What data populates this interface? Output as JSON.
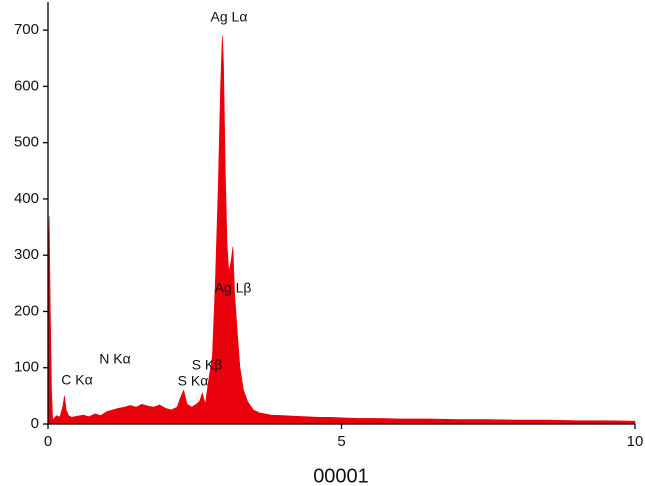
{
  "chart_data": {
    "type": "area",
    "x_label": "00001",
    "color": "#e8000b",
    "x": [
      0,
      0.02,
      0.04,
      0.06,
      0.08,
      0.1,
      0.15,
      0.2,
      0.25,
      0.28,
      0.31,
      0.35,
      0.4,
      0.5,
      0.6,
      0.7,
      0.8,
      0.9,
      1.0,
      1.1,
      1.2,
      1.3,
      1.4,
      1.5,
      1.6,
      1.7,
      1.8,
      1.9,
      2.0,
      2.1,
      2.2,
      2.25,
      2.31,
      2.37,
      2.45,
      2.52,
      2.58,
      2.63,
      2.68,
      2.74,
      2.8,
      2.85,
      2.9,
      2.94,
      2.97,
      2.99,
      3.02,
      3.05,
      3.08,
      3.12,
      3.15,
      3.18,
      3.22,
      3.27,
      3.33,
      3.4,
      3.5,
      3.6,
      3.7,
      3.8,
      4.0,
      4.2,
      4.4,
      4.6,
      4.8,
      5.0,
      5.3,
      5.6,
      6.0,
      6.5,
      7.0,
      7.5,
      8.0,
      8.5,
      9.0,
      9.5,
      10.0
    ],
    "values": [
      250,
      370,
      200,
      60,
      5,
      10,
      15,
      12,
      30,
      50,
      25,
      15,
      12,
      14,
      16,
      13,
      18,
      15,
      22,
      25,
      28,
      30,
      33,
      30,
      35,
      32,
      30,
      34,
      28,
      25,
      30,
      45,
      60,
      35,
      30,
      35,
      40,
      55,
      35,
      80,
      120,
      250,
      420,
      600,
      690,
      640,
      450,
      320,
      270,
      290,
      315,
      230,
      170,
      100,
      60,
      40,
      25,
      20,
      18,
      16,
      15,
      14,
      13,
      12,
      12,
      11,
      10,
      10,
      9,
      9,
      8,
      8,
      7,
      7,
      6,
      6,
      5
    ],
    "xlim": [
      0,
      10
    ],
    "xticks": [
      0,
      5,
      10
    ],
    "ylim": [
      0,
      750
    ],
    "yticks": [
      0,
      100,
      200,
      300,
      400,
      500,
      600,
      700
    ],
    "annotations": [
      "Ag Lα",
      "Ag Lβ",
      "N Kα",
      "C Kα",
      "S Kβ",
      "S Kα"
    ]
  }
}
